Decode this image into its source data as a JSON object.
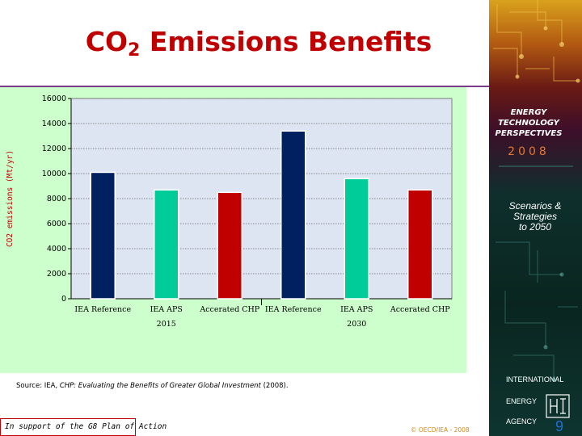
{
  "slide": {
    "title_main": "CO",
    "title_sub": "2",
    "title_rest": " Emissions Benefits",
    "source_prefix": "Source:  IEA, ",
    "source_title": "CHP:  Evaluating the Benefits of Greater Global Investment",
    "source_suffix": "  (2008).",
    "support_text": "In support of the G8 Plan of Action",
    "copyright": "© OECD/IEA - 2008",
    "page_number": "9"
  },
  "side_panel": {
    "line1": "ENERGY",
    "line2": "TECHNOLOGY",
    "line3": "PERSPECTIVES",
    "year": "2008",
    "scenarios_line1": "Scenarios &",
    "scenarios_line2": "Strategies",
    "scenarios_line3": "to 2050",
    "org1": "INTERNATIONAL",
    "org2": "ENERGY",
    "org3": "AGENCY"
  },
  "chart_data": {
    "type": "bar",
    "title": "",
    "ylabel": "CO2 emissions (Mt/yr)",
    "xlabel": "",
    "ylim": [
      0,
      16000
    ],
    "yticks": [
      0,
      2000,
      4000,
      6000,
      8000,
      10000,
      12000,
      14000,
      16000
    ],
    "grid": true,
    "categories": [
      "IEA Reference",
      "IEA APS",
      "Accerated CHP",
      "IEA Reference",
      "IEA APS",
      "Accerated CHP"
    ],
    "groups": [
      "2015",
      "2030"
    ],
    "group_of_category": [
      0,
      0,
      0,
      1,
      1,
      1
    ],
    "values": [
      10100,
      8700,
      8500,
      13400,
      9600,
      8700
    ],
    "bar_colors": [
      "#002060",
      "#00cc99",
      "#c00000",
      "#002060",
      "#00cc99",
      "#c00000"
    ],
    "plot_background": "#dde4f2",
    "panel_background": "#ccffcc"
  },
  "colors": {
    "title_red": "#c00000",
    "rule_purple": "#7a3a8a",
    "year_orange": "#e8772e",
    "copyright_gold": "#d08a1a"
  }
}
